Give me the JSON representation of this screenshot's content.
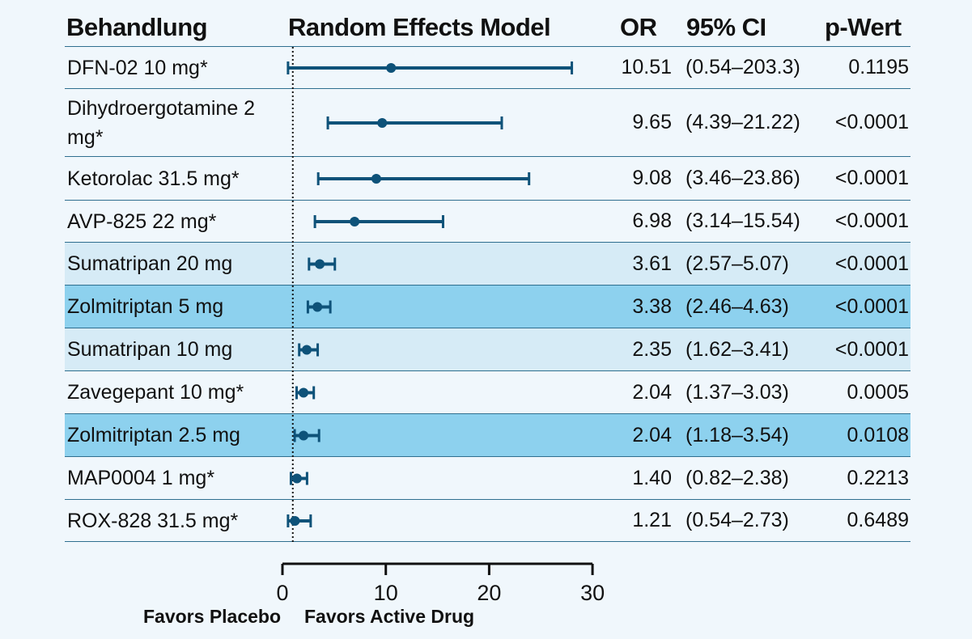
{
  "headers": {
    "treatment": "Behandlung",
    "model": "Random Effects Model",
    "or": "OR",
    "ci": "95% CI",
    "p": "p-Wert"
  },
  "rows": [
    {
      "label": "DFN-02 10 mg*",
      "or": "10.51",
      "ci": "(0.54–203.3)",
      "p": "0.1195",
      "band": "none"
    },
    {
      "label": "Dihydroergotamine 2 mg*",
      "or": "9.65",
      "ci": "(4.39–21.22)",
      "p": "<0.0001",
      "band": "none"
    },
    {
      "label": "Ketorolac 31.5 mg*",
      "or": "9.08",
      "ci": "(3.46–23.86)",
      "p": "<0.0001",
      "band": "none"
    },
    {
      "label": "AVP-825 22 mg*",
      "or": "6.98",
      "ci": "(3.14–15.54)",
      "p": "<0.0001",
      "band": "none"
    },
    {
      "label": "Sumatripan 20 mg",
      "or": "3.61",
      "ci": "(2.57–5.07)",
      "p": "<0.0001",
      "band": "light"
    },
    {
      "label": "Zolmitriptan 5 mg",
      "or": "3.38",
      "ci": "(2.46–4.63)",
      "p": "<0.0001",
      "band": "dark"
    },
    {
      "label": "Sumatripan 10 mg",
      "or": "2.35",
      "ci": "(1.62–3.41)",
      "p": "<0.0001",
      "band": "light"
    },
    {
      "label": "Zavegepant 10 mg*",
      "or": "2.04",
      "ci": "(1.37–3.03)",
      "p": "0.0005",
      "band": "none"
    },
    {
      "label": "Zolmitriptan 2.5 mg",
      "or": "2.04",
      "ci": "(1.18–3.54)",
      "p": "0.0108",
      "band": "dark"
    },
    {
      "label": "MAP0004 1 mg*",
      "or": "1.40",
      "ci": "(0.82–2.38)",
      "p": "0.2213",
      "band": "none"
    },
    {
      "label": "ROX-828 31.5 mg*",
      "or": "1.21",
      "ci": "(0.54–2.73)",
      "p": "0.6489",
      "band": "none"
    }
  ],
  "axis": {
    "ticks": [
      "0",
      "10",
      "20",
      "30"
    ],
    "favors_left": "Favors Placebo",
    "favors_right": "Favors Active Drug"
  },
  "colors": {
    "background": "#f0f7fc",
    "band_light": "#d6ebf6",
    "band_dark": "#8dd1ee",
    "marker": "#0e5279",
    "reference_line": "#111111"
  },
  "chart_data": {
    "type": "forest",
    "title": "Random Effects Model",
    "xlim": [
      0,
      30
    ],
    "x_ticks": [
      0,
      10,
      20,
      30
    ],
    "reference_line": 1,
    "truncated_upper_note": "DFN-02 upper CI 203.3 is drawn clipped beyond the axis maximum",
    "series": [
      {
        "name": "DFN-02 10 mg*",
        "or": 10.51,
        "lower": 0.54,
        "upper": 203.3
      },
      {
        "name": "Dihydroergotamine 2 mg*",
        "or": 9.65,
        "lower": 4.39,
        "upper": 21.22
      },
      {
        "name": "Ketorolac 31.5 mg*",
        "or": 9.08,
        "lower": 3.46,
        "upper": 23.86
      },
      {
        "name": "AVP-825 22 mg*",
        "or": 6.98,
        "lower": 3.14,
        "upper": 15.54
      },
      {
        "name": "Sumatripan 20 mg",
        "or": 3.61,
        "lower": 2.57,
        "upper": 5.07
      },
      {
        "name": "Zolmitriptan 5 mg",
        "or": 3.38,
        "lower": 2.46,
        "upper": 4.63
      },
      {
        "name": "Sumatripan 10 mg",
        "or": 2.35,
        "lower": 1.62,
        "upper": 3.41
      },
      {
        "name": "Zavegepant 10 mg*",
        "or": 2.04,
        "lower": 1.37,
        "upper": 3.03
      },
      {
        "name": "Zolmitriptan 2.5 mg",
        "or": 2.04,
        "lower": 1.18,
        "upper": 3.54
      },
      {
        "name": "MAP0004 1 mg*",
        "or": 1.4,
        "lower": 0.82,
        "upper": 2.38
      },
      {
        "name": "ROX-828 31.5 mg*",
        "or": 1.21,
        "lower": 0.54,
        "upper": 2.73
      }
    ]
  }
}
